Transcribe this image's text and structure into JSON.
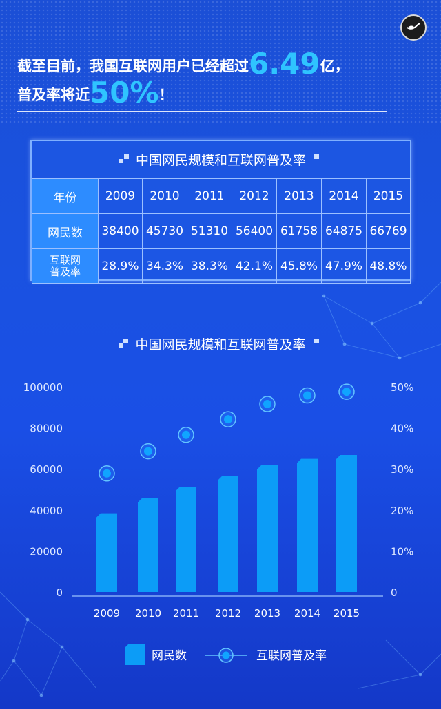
{
  "headline": {
    "line1_prefix": "截至目前，我国互联网用户已经超过",
    "line1_value": "6.49",
    "line1_suffix": "亿，",
    "line2_prefix": "普及率将近",
    "line2_value": "50%",
    "line2_suffix": "！"
  },
  "table": {
    "title": "中国网民规模和互联网普及率",
    "header_label": "年份",
    "years": [
      "2009",
      "2010",
      "2011",
      "2012",
      "2013",
      "2014",
      "2015"
    ],
    "users_label": "网民数",
    "users": [
      "38400",
      "45730",
      "51310",
      "56400",
      "61758",
      "64875",
      "66769"
    ],
    "rate_label_line1": "互联网",
    "rate_label_line2": "普及率",
    "rates": [
      "28.9%",
      "34.3%",
      "38.3%",
      "42.1%",
      "45.8%",
      "47.9%",
      "48.8%"
    ]
  },
  "chart_data": {
    "type": "bar",
    "title": "中国网民规模和互联网普及率",
    "categories": [
      "2009",
      "2010",
      "2011",
      "2012",
      "2013",
      "2014",
      "2015"
    ],
    "series": [
      {
        "name": "网民数",
        "type": "bar",
        "axis": "left",
        "values": [
          38400,
          45730,
          51310,
          56400,
          61758,
          64875,
          66769
        ]
      },
      {
        "name": "互联网普及率",
        "type": "scatter",
        "axis": "right",
        "values": [
          28.9,
          34.3,
          38.3,
          42.1,
          45.8,
          47.9,
          48.8
        ]
      }
    ],
    "yleft_ticks": [
      "0",
      "20000",
      "40000",
      "60000",
      "80000",
      "100000"
    ],
    "yleft_lim": [
      0,
      100000
    ],
    "yright_ticks": [
      "0",
      "10%",
      "20%",
      "30%",
      "40%",
      "50%"
    ],
    "yright_lim": [
      0,
      50
    ],
    "grid": false,
    "legend_position": "bottom",
    "colors": {
      "bar": "#0c9cf7",
      "point": "#10a4ff"
    }
  }
}
